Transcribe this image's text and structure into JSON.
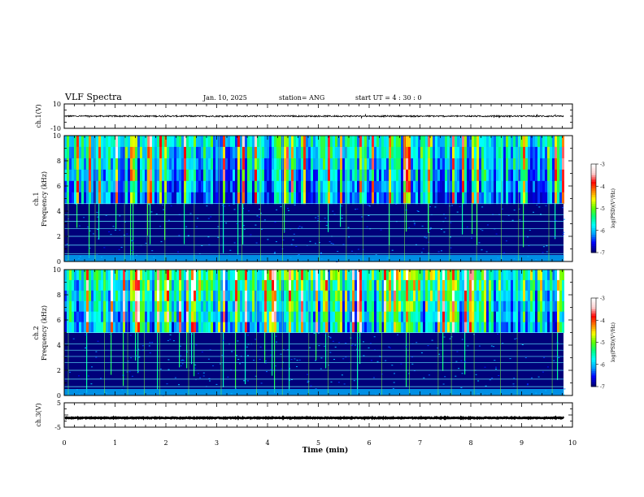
{
  "header": {
    "title": "VLF Spectra",
    "date": "Jan. 10, 2025",
    "station": "station= ANG",
    "start_ut": "start  UT =   4 : 30 : 0"
  },
  "chart_data": [
    {
      "type": "line",
      "panel": "ch1-waveform",
      "ylabel": "ch.1(V)",
      "ylim": [
        -10,
        10
      ],
      "ytick_labels": [
        "10",
        "-10"
      ],
      "trace": {
        "mean": 0,
        "amplitude": 1.2,
        "spike_amplitude": 2.5,
        "color": "#000000"
      }
    },
    {
      "type": "heatmap",
      "panel": "ch1-spectrogram",
      "ylabel_lines": [
        "ch.1",
        "Frequency (kHz)"
      ],
      "ylim": [
        0,
        10
      ],
      "ytick_labels": [
        "0",
        "2",
        "4",
        "6",
        "8",
        "10"
      ],
      "noise_band_upper_khz": 4.6,
      "upper_band_intensity": 0.55,
      "horizontal_lines_khz": [
        0.6,
        1.3,
        2.0,
        2.6,
        3.2,
        3.7,
        4.6
      ],
      "colorbar": {
        "label": "log(PSD)(V²/Hz)",
        "range": [
          -7,
          -3
        ],
        "tick_labels": [
          "-3",
          "-4",
          "-5",
          "-6",
          "-7"
        ]
      }
    },
    {
      "type": "heatmap",
      "panel": "ch2-spectrogram",
      "ylabel_lines": [
        "ch.2",
        "Frequency (kHz)"
      ],
      "ylim": [
        0,
        10
      ],
      "ytick_labels": [
        "0",
        "2",
        "4",
        "6",
        "8",
        "10"
      ],
      "noise_band_upper_khz": 5.0,
      "upper_band_intensity": 0.7,
      "horizontal_lines_khz": [
        0.7,
        1.3,
        2.0,
        2.6,
        3.1,
        3.6,
        4.1,
        5.0
      ],
      "colorbar": {
        "label": "log(PSD)(V²/Hz)",
        "range": [
          -7,
          -3
        ],
        "tick_labels": [
          "-3",
          "-4",
          "-5",
          "-6",
          "-7"
        ]
      }
    },
    {
      "type": "line",
      "panel": "ch3-waveform",
      "ylabel": "ch.3(V)",
      "ylim": [
        -5,
        5
      ],
      "ytick_labels": [
        "5",
        "-5"
      ],
      "trace": {
        "mean": -1.2,
        "amplitude": 0.35,
        "color": "#000000"
      }
    }
  ],
  "x_axis": {
    "label": "Time (min)",
    "range": [
      0,
      10
    ],
    "data_end_min": 9.83,
    "tick_labels": [
      "0",
      "1",
      "2",
      "3",
      "4",
      "5",
      "6",
      "7",
      "8",
      "9",
      "10"
    ]
  },
  "colors": {
    "colormap": [
      "#00007a",
      "#0000ff",
      "#00a0ff",
      "#00ffff",
      "#00ff80",
      "#60ff00",
      "#ffff00",
      "#ff8000",
      "#ff0000",
      "#ffd0d0",
      "#ffffff"
    ],
    "horizontal_line": "#5fe9ff",
    "vertical_line": "#7cff3a"
  }
}
